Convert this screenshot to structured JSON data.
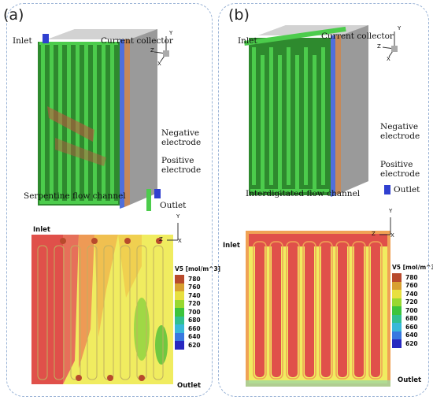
{
  "panels": [
    {
      "tag": "(a)",
      "labels": {
        "inlet": "Inlet",
        "collector": "Current collector",
        "negative": "Negative\nelectrode",
        "positive": "Positive\nelectrode",
        "channel": "Serpentine flow channel",
        "outlet": "Outlet"
      },
      "contour": {
        "inlet": "Inlet",
        "outlet": "Outlet"
      },
      "axes": {
        "y": "Y",
        "z": "Z",
        "x": "X"
      }
    },
    {
      "tag": "(b)",
      "labels": {
        "inlet": "Inlet",
        "collector": "Current collector",
        "negative": "Negative\nelectrode",
        "positive": "Positive\nelectrode",
        "channel": "Interdigitated flow channel",
        "outlet": "Outlet"
      },
      "contour": {
        "inlet": "Inlet",
        "outlet": "Outlet"
      },
      "axes": {
        "y": "Y",
        "z": "Z",
        "x": "X"
      }
    }
  ],
  "legend": {
    "title": "V5 [mol/m^3]",
    "levels": [
      {
        "value": "780",
        "color": "#b84a2c"
      },
      {
        "value": "760",
        "color": "#d8a030"
      },
      {
        "value": "740",
        "color": "#e8e040"
      },
      {
        "value": "720",
        "color": "#98d830"
      },
      {
        "value": "700",
        "color": "#3cc43c"
      },
      {
        "value": "680",
        "color": "#30c090"
      },
      {
        "value": "660",
        "color": "#38b8d8"
      },
      {
        "value": "640",
        "color": "#3878e0"
      },
      {
        "value": "620",
        "color": "#2828c0"
      }
    ]
  },
  "colors": {
    "red": "#e0504a",
    "yellow": "#f0ec60",
    "green_channel": "#3cbf3c",
    "collector": "#a9a9a9",
    "negative": "#3f5fd8",
    "positive": "#d39a5a"
  }
}
